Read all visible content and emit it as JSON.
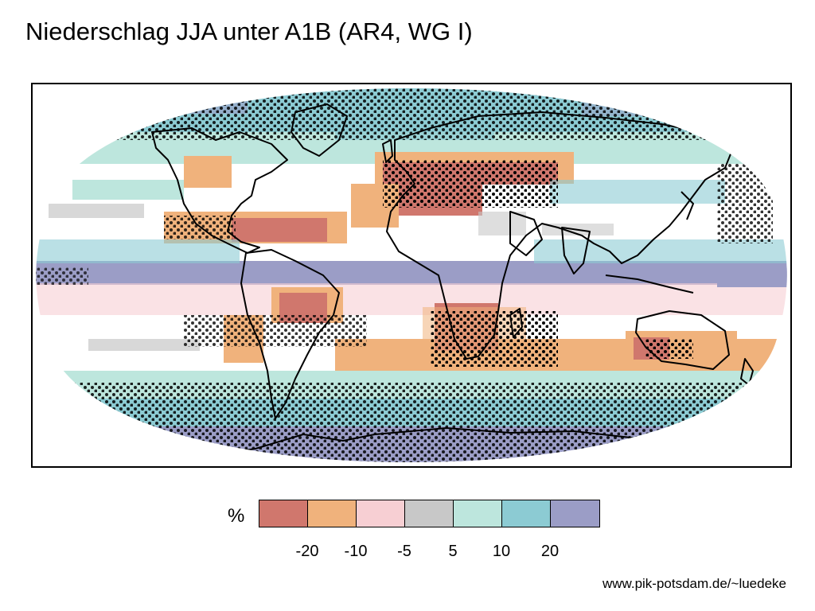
{
  "title": "Niederschlag JJA unter A1B (AR4, WG I)",
  "legend": {
    "unit": "%",
    "colors": [
      "#d0776d",
      "#f0b27c",
      "#f7cfd3",
      "#c8c8c8",
      "#bde6dd",
      "#8ccbd3",
      "#9b9dc6"
    ],
    "ticks": [
      "-20",
      "-10",
      "-5",
      "5",
      "10",
      "20"
    ]
  },
  "credit": "www.pik-potsdam.de/~luedeke",
  "map": {
    "ocean_base": "#ffffff",
    "coastline_color": "#000000",
    "stipple_color": "#000000",
    "background_bands": [
      {
        "name": "arctic",
        "color": "#8ccbd3"
      },
      {
        "name": "north-subtropics",
        "color": "#f7cfd3"
      },
      {
        "name": "equatorial",
        "color": "#9b9dc6"
      },
      {
        "name": "south-subtropics",
        "color": "#f0b27c"
      },
      {
        "name": "southern-ocean",
        "color": "#8ccbd3"
      },
      {
        "name": "antarctic",
        "color": "#9b9dc6"
      }
    ]
  }
}
